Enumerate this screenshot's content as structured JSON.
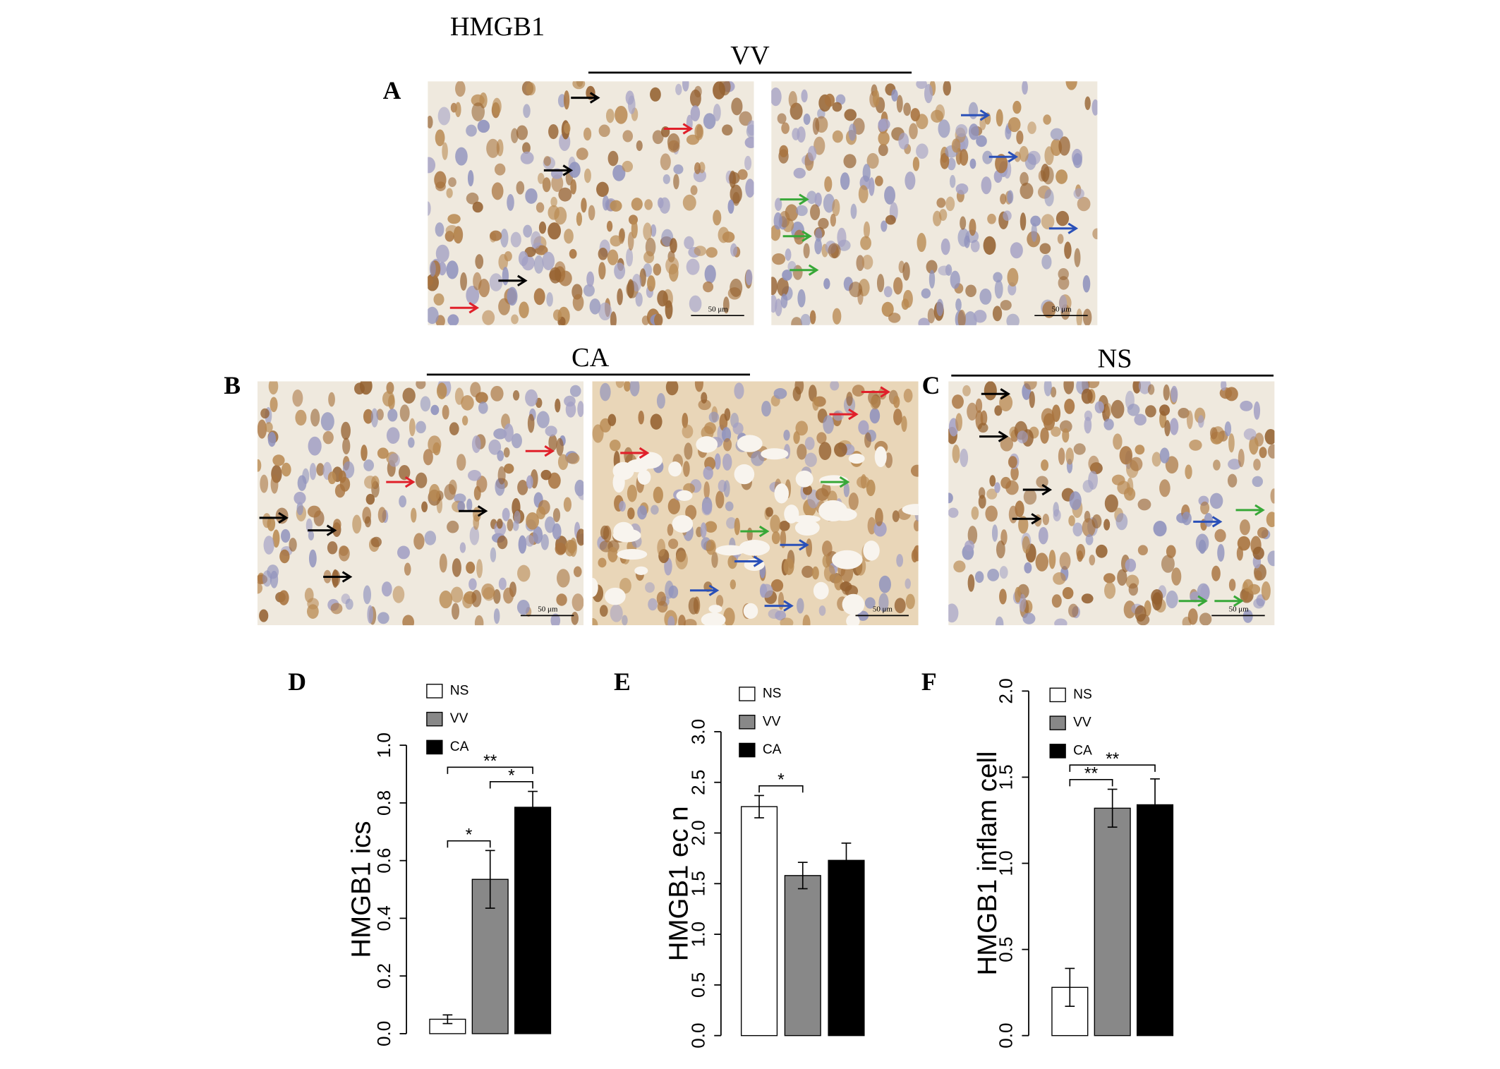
{
  "figure": {
    "title": "HMGB1",
    "groups": [
      {
        "label": "VV"
      },
      {
        "label": "CA"
      },
      {
        "label": "NS"
      }
    ],
    "panel_letters": [
      "A",
      "B",
      "C"
    ],
    "images": [
      {
        "scale_bar": "50 μm"
      },
      {
        "scale_bar": "50 μm"
      },
      {
        "scale_bar": "50 μm"
      },
      {
        "scale_bar": "50 μm"
      },
      {
        "scale_bar": "50 μm"
      },
      {
        "scale_bar": "50 μm"
      }
    ]
  },
  "chart_data": [
    {
      "type": "bar",
      "title": "D",
      "y_label": "HMGB1 ics",
      "series": [
        {
          "name": "NS",
          "color": "#ffffff",
          "values": [
            0.05
          ],
          "errors": [
            0.015
          ]
        },
        {
          "name": "VV",
          "color": "#888888",
          "values": [
            0.535
          ],
          "errors": [
            0.1
          ]
        },
        {
          "name": "CA",
          "color": "#000000",
          "values": [
            0.785
          ],
          "errors": [
            0.055
          ]
        }
      ],
      "ylim": [
        0,
        1
      ],
      "yticks": [
        {
          "value": 0,
          "label": "0.0"
        },
        0.2,
        0.4,
        0.6,
        0.8,
        {
          "value": 1,
          "label": "1.0"
        }
      ],
      "annotations": [
        {
          "text": "*",
          "from": 0,
          "to": 1
        },
        {
          "text": "*",
          "from": 1,
          "to": 2
        },
        {
          "text": "**",
          "from": 0,
          "to": 2
        }
      ]
    },
    {
      "type": "bar",
      "title": "E",
      "y_label": "HMGB1 ec n",
      "series": [
        {
          "name": "NS",
          "color": "#ffffff",
          "values": [
            2.26
          ],
          "errors": [
            0.11
          ]
        },
        {
          "name": "VV",
          "color": "#888888",
          "values": [
            1.58
          ],
          "errors": [
            0.13
          ]
        },
        {
          "name": "CA",
          "color": "#000000",
          "values": [
            1.73
          ],
          "errors": [
            0.17
          ]
        }
      ],
      "ylim": [
        0,
        3
      ],
      "yticks": [
        {
          "value": 0,
          "label": "0.0"
        },
        0.5,
        {
          "value": 1,
          "label": "1.0"
        },
        1.5,
        {
          "value": 2,
          "label": "2.0"
        },
        2.5,
        {
          "value": 3,
          "label": "3.0"
        }
      ],
      "annotations": [
        {
          "text": "*",
          "from": 0,
          "to": 1
        }
      ]
    },
    {
      "type": "bar",
      "title": "F",
      "y_label": "HMGB1 inflam cell",
      "series": [
        {
          "name": "NS",
          "color": "#ffffff",
          "values": [
            0.28
          ],
          "errors": [
            0.11
          ]
        },
        {
          "name": "VV",
          "color": "#888888",
          "values": [
            1.32
          ],
          "errors": [
            0.11
          ]
        },
        {
          "name": "CA",
          "color": "#000000",
          "values": [
            1.34
          ],
          "errors": [
            0.15
          ]
        }
      ],
      "ylim": [
        0,
        2
      ],
      "yticks": [
        {
          "value": 0,
          "label": "0.0"
        },
        0.5,
        {
          "value": 1,
          "label": "1.0"
        },
        1.5,
        {
          "value": 2,
          "label": "2.0"
        }
      ],
      "annotations": [
        {
          "text": "**",
          "from": 0,
          "to": 1
        },
        {
          "text": "**",
          "from": 0,
          "to": 2
        }
      ]
    }
  ]
}
